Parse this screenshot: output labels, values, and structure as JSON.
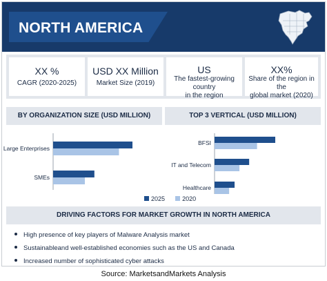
{
  "header": {
    "title": "NORTH AMERICA"
  },
  "stats": [
    {
      "value": "XX %",
      "label": "CAGR (2020-2025)"
    },
    {
      "value": "USD XX Million",
      "label": "Market Size (2019)"
    },
    {
      "value": "US",
      "label_lines": [
        "The fastest-growing country",
        "in the region"
      ]
    },
    {
      "value": "XX%",
      "label_lines": [
        "Share of the region in the",
        "global market (2020)"
      ]
    }
  ],
  "panels": {
    "left_title": "BY ORGANIZATION  SIZE (USD MILLION)",
    "right_title": "TOP 3 VERTICAL (USD MILLION)"
  },
  "colors": {
    "y2025": "#1f4f8d",
    "y2020": "#a9c4e6",
    "header": "#173a6a"
  },
  "chart_data": [
    {
      "type": "bar",
      "orientation": "horizontal",
      "title": "BY ORGANIZATION  SIZE (USD MILLION)",
      "categories": [
        "Large Enterprises",
        "SMEs"
      ],
      "series": [
        {
          "name": "2025",
          "values": [
            100,
            52
          ]
        },
        {
          "name": "2020",
          "values": [
            83,
            40
          ]
        }
      ],
      "grid": false,
      "legend": "bottom"
    },
    {
      "type": "bar",
      "orientation": "horizontal",
      "title": "TOP 3 VERTICAL (USD MILLION)",
      "categories": [
        "BFSI",
        "IT and Telecom",
        "Healthcare"
      ],
      "series": [
        {
          "name": "2025",
          "values": [
            100,
            57,
            33
          ]
        },
        {
          "name": "2020",
          "values": [
            70,
            41,
            24
          ]
        }
      ],
      "grid": false,
      "legend": "bottom"
    }
  ],
  "legend": {
    "y2025": "2025",
    "y2020": "2020"
  },
  "drivers": {
    "title": "DRIVING FACTORS FOR MARKET GROWTH IN NORTH AMERICA",
    "items": [
      "High presence of key players of Malware Analysis market",
      "Sustainableand well-established economies such as the US and Canada",
      "Increased number of sophisticated cyber attacks"
    ]
  },
  "source": "Source: MarketsandMarkets Analysis"
}
